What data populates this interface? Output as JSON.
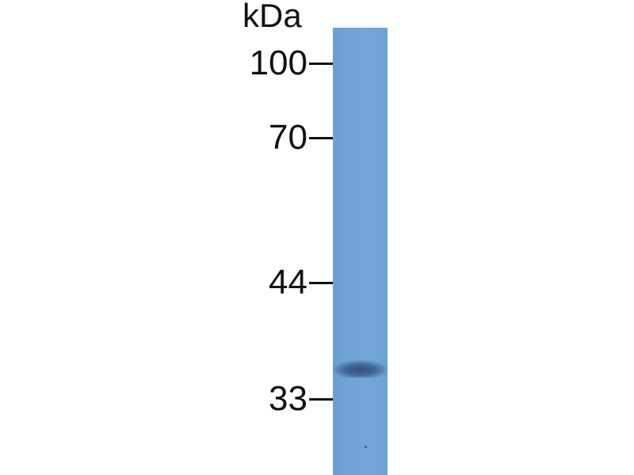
{
  "unit_label": "kDa",
  "markers": [
    {
      "label": "100"
    },
    {
      "label": "70"
    },
    {
      "label": "44"
    },
    {
      "label": "33"
    }
  ],
  "lane": {
    "color": "#6ea3d4",
    "band_color": "#2d4a70"
  },
  "band": {
    "approx_kda": "~36"
  }
}
